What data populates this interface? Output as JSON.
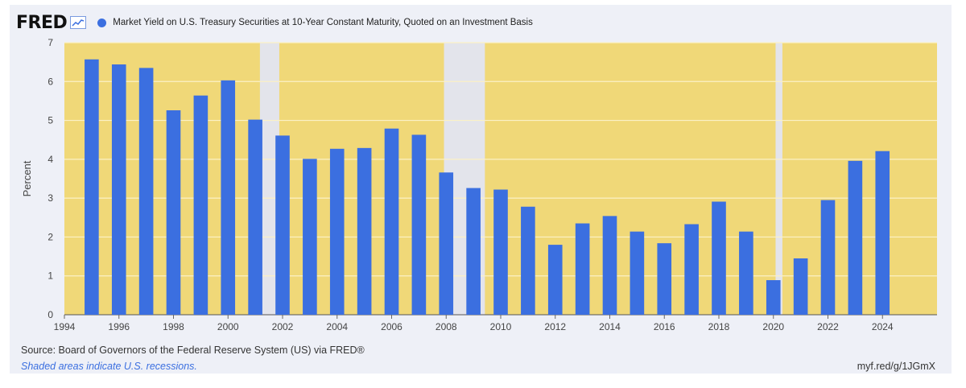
{
  "header": {
    "logo": "FRED",
    "legend": "Market Yield on U.S. Treasury Securities at 10-Year Constant Maturity, Quoted on an Investment Basis"
  },
  "footer": {
    "source": "Source: Board of Governors of the Federal Reserve System (US) via FRED®",
    "note": "Shaded areas indicate U.S. recessions.",
    "link": "myf.red/g/1JGmX"
  },
  "colors": {
    "bar": "#3b6fe0",
    "plot_background": "#f0d878",
    "recession": "#e3e4eb",
    "grid": "#fbf1c6"
  },
  "chart_data": {
    "type": "bar",
    "title": "",
    "xlabel": "",
    "ylabel": "Percent",
    "ylim": [
      0,
      7
    ],
    "xlim": [
      1994,
      2026
    ],
    "grid": true,
    "y_ticks": [
      0,
      1,
      2,
      3,
      4,
      5,
      6,
      7
    ],
    "x_ticks": [
      1994,
      1996,
      1998,
      2000,
      2002,
      2004,
      2006,
      2008,
      2010,
      2012,
      2014,
      2016,
      2018,
      2020,
      2022,
      2024
    ],
    "series": [
      {
        "name": "Market Yield on U.S. Treasury Securities at 10-Year Constant Maturity, Quoted on an Investment Basis",
        "x": [
          1995,
          1996,
          1997,
          1998,
          1999,
          2000,
          2001,
          2002,
          2003,
          2004,
          2005,
          2006,
          2007,
          2008,
          2009,
          2010,
          2011,
          2012,
          2013,
          2014,
          2015,
          2016,
          2017,
          2018,
          2019,
          2020,
          2021,
          2022,
          2023,
          2024
        ],
        "values": [
          6.57,
          6.44,
          6.35,
          5.26,
          5.64,
          6.03,
          5.02,
          4.61,
          4.01,
          4.27,
          4.29,
          4.79,
          4.63,
          3.66,
          3.26,
          3.22,
          2.78,
          1.8,
          2.35,
          2.54,
          2.14,
          1.84,
          2.33,
          2.91,
          2.14,
          0.89,
          1.45,
          2.95,
          3.96,
          4.21
        ]
      }
    ],
    "recessions": [
      {
        "start": 2001.17,
        "end": 2001.88
      },
      {
        "start": 2007.92,
        "end": 2009.42
      },
      {
        "start": 2020.08,
        "end": 2020.33
      }
    ]
  }
}
